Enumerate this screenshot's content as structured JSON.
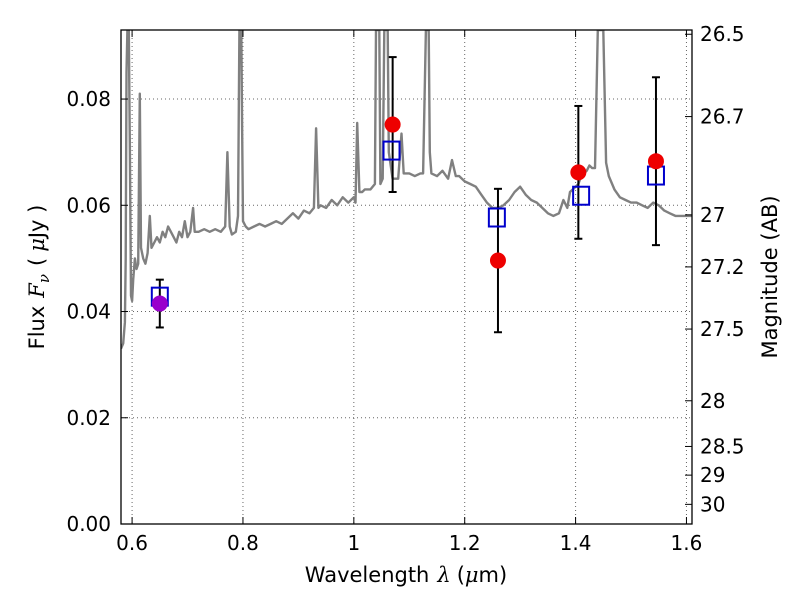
{
  "chart_data": {
    "type": "scatter",
    "xlabel": "Wavelength",
    "xlabel_symbol": "λ",
    "xlabel_unit_open": "(",
    "xlabel_unit_mu": "μ",
    "xlabel_unit_rest": "m)",
    "ylabel_left": "Flux",
    "ylabel_symbol": "F",
    "ylabel_symbol_sub": "ν",
    "ylabel_unit_open": "(",
    "ylabel_unit_mu": "μ",
    "ylabel_unit_rest": "Jy )",
    "ylabel_right": "Magnitude (AB)",
    "xlim": [
      0.58,
      1.61
    ],
    "ylim": [
      0.0,
      0.093
    ],
    "x_ticks": [
      "0.6",
      "0.8",
      "1",
      "1.2",
      "1.4",
      "1.6"
    ],
    "x_tick_values": [
      0.6,
      0.8,
      1.0,
      1.2,
      1.4,
      1.6
    ],
    "y_ticks": [
      "0.00",
      "0.02",
      "0.04",
      "0.06",
      "0.08"
    ],
    "y_tick_values": [
      0.0,
      0.02,
      0.04,
      0.06,
      0.08
    ],
    "right_ticks": [
      {
        "label": "26.5",
        "flux": 0.0922
      },
      {
        "label": "26.7",
        "flux": 0.0767
      },
      {
        "label": "27",
        "flux": 0.0582
      },
      {
        "label": "27.2",
        "flux": 0.0484
      },
      {
        "label": "27.5",
        "flux": 0.0367
      },
      {
        "label": "28",
        "flux": 0.0232
      },
      {
        "label": "28.5",
        "flux": 0.0146
      },
      {
        "label": "29",
        "flux": 0.0092
      },
      {
        "label": "30",
        "flux": 0.0037
      }
    ],
    "observed": [
      {
        "x": 0.65,
        "y": 0.0415,
        "err_low": 0.0045,
        "err_high": 0.0045,
        "color": "#9900cc"
      },
      {
        "x": 1.07,
        "y": 0.0752,
        "err_low": 0.0127,
        "err_high": 0.0127,
        "color": "#ee0000"
      },
      {
        "x": 1.26,
        "y": 0.0496,
        "err_low": 0.0135,
        "err_high": 0.0135,
        "color": "#ee0000"
      },
      {
        "x": 1.405,
        "y": 0.0662,
        "err_low": 0.0125,
        "err_high": 0.0125,
        "color": "#ee0000"
      },
      {
        "x": 1.545,
        "y": 0.0683,
        "err_low": 0.0158,
        "err_high": 0.0158,
        "color": "#ee0000"
      }
    ],
    "model_points": {
      "x": [
        0.65,
        1.068,
        1.258,
        1.41,
        1.545
      ],
      "y": [
        0.0428,
        0.0703,
        0.0577,
        0.0618,
        0.0656
      ],
      "color": "#0000cc"
    },
    "model_spectrum": {
      "color": "#808080",
      "points": [
        [
          0.58,
          0.033
        ],
        [
          0.584,
          0.034
        ],
        [
          0.587,
          0.038
        ],
        [
          0.5885,
          0.05
        ],
        [
          0.59,
          0.085
        ],
        [
          0.5915,
          0.093
        ],
        [
          0.594,
          0.093
        ],
        [
          0.596,
          0.07
        ],
        [
          0.598,
          0.043
        ],
        [
          0.6,
          0.042
        ],
        [
          0.602,
          0.046
        ],
        [
          0.605,
          0.05
        ],
        [
          0.608,
          0.048
        ],
        [
          0.611,
          0.049
        ],
        [
          0.614,
          0.081
        ],
        [
          0.616,
          0.052
        ],
        [
          0.62,
          0.05
        ],
        [
          0.624,
          0.049
        ],
        [
          0.628,
          0.051
        ],
        [
          0.632,
          0.058
        ],
        [
          0.635,
          0.052
        ],
        [
          0.64,
          0.053
        ],
        [
          0.645,
          0.054
        ],
        [
          0.65,
          0.053
        ],
        [
          0.655,
          0.055
        ],
        [
          0.66,
          0.054
        ],
        [
          0.665,
          0.056
        ],
        [
          0.67,
          0.055
        ],
        [
          0.675,
          0.054
        ],
        [
          0.68,
          0.053
        ],
        [
          0.685,
          0.055
        ],
        [
          0.69,
          0.054
        ],
        [
          0.695,
          0.057
        ],
        [
          0.7,
          0.054
        ],
        [
          0.705,
          0.055
        ],
        [
          0.71,
          0.0595
        ],
        [
          0.713,
          0.055
        ],
        [
          0.72,
          0.055
        ],
        [
          0.73,
          0.0555
        ],
        [
          0.74,
          0.055
        ],
        [
          0.75,
          0.0555
        ],
        [
          0.76,
          0.055
        ],
        [
          0.768,
          0.056
        ],
        [
          0.772,
          0.07
        ],
        [
          0.776,
          0.056
        ],
        [
          0.78,
          0.0545
        ],
        [
          0.787,
          0.055
        ],
        [
          0.791,
          0.058
        ],
        [
          0.7935,
          0.093
        ],
        [
          0.797,
          0.093
        ],
        [
          0.7985,
          0.075
        ],
        [
          0.8,
          0.057
        ],
        [
          0.805,
          0.056
        ],
        [
          0.81,
          0.0555
        ],
        [
          0.82,
          0.056
        ],
        [
          0.83,
          0.0565
        ],
        [
          0.84,
          0.056
        ],
        [
          0.85,
          0.0565
        ],
        [
          0.86,
          0.057
        ],
        [
          0.87,
          0.0565
        ],
        [
          0.88,
          0.0575
        ],
        [
          0.89,
          0.0585
        ],
        [
          0.9,
          0.0575
        ],
        [
          0.91,
          0.059
        ],
        [
          0.92,
          0.0585
        ],
        [
          0.928,
          0.0595
        ],
        [
          0.932,
          0.0745
        ],
        [
          0.936,
          0.0595
        ],
        [
          0.94,
          0.06
        ],
        [
          0.95,
          0.0595
        ],
        [
          0.96,
          0.061
        ],
        [
          0.97,
          0.06
        ],
        [
          0.98,
          0.0615
        ],
        [
          0.99,
          0.0605
        ],
        [
          1.0,
          0.0615
        ],
        [
          1.003,
          0.0605
        ],
        [
          1.006,
          0.0755
        ],
        [
          1.01,
          0.0625
        ],
        [
          1.015,
          0.0625
        ],
        [
          1.02,
          0.063
        ],
        [
          1.03,
          0.063
        ],
        [
          1.038,
          0.064
        ],
        [
          1.04,
          0.093
        ],
        [
          1.046,
          0.093
        ],
        [
          1.048,
          0.064
        ],
        [
          1.052,
          0.065
        ],
        [
          1.055,
          0.093
        ],
        [
          1.061,
          0.093
        ],
        [
          1.063,
          0.07
        ],
        [
          1.07,
          0.065
        ],
        [
          1.08,
          0.065
        ],
        [
          1.086,
          0.0735
        ],
        [
          1.09,
          0.066
        ],
        [
          1.1,
          0.066
        ],
        [
          1.11,
          0.0655
        ],
        [
          1.12,
          0.066
        ],
        [
          1.125,
          0.066
        ],
        [
          1.13,
          0.093
        ],
        [
          1.135,
          0.093
        ],
        [
          1.137,
          0.07
        ],
        [
          1.14,
          0.066
        ],
        [
          1.15,
          0.0655
        ],
        [
          1.16,
          0.0665
        ],
        [
          1.17,
          0.065
        ],
        [
          1.177,
          0.0685
        ],
        [
          1.184,
          0.0655
        ],
        [
          1.19,
          0.0655
        ],
        [
          1.2,
          0.0645
        ],
        [
          1.21,
          0.064
        ],
        [
          1.22,
          0.0635
        ],
        [
          1.23,
          0.062
        ],
        [
          1.24,
          0.0605
        ],
        [
          1.25,
          0.0595
        ],
        [
          1.26,
          0.0595
        ],
        [
          1.27,
          0.06
        ],
        [
          1.28,
          0.061
        ],
        [
          1.29,
          0.0625
        ],
        [
          1.3,
          0.0635
        ],
        [
          1.31,
          0.062
        ],
        [
          1.32,
          0.061
        ],
        [
          1.33,
          0.0605
        ],
        [
          1.34,
          0.0595
        ],
        [
          1.35,
          0.0585
        ],
        [
          1.36,
          0.058
        ],
        [
          1.37,
          0.0585
        ],
        [
          1.378,
          0.061
        ],
        [
          1.385,
          0.0595
        ],
        [
          1.39,
          0.0625
        ],
        [
          1.4,
          0.0635
        ],
        [
          1.405,
          0.064
        ],
        [
          1.41,
          0.0655
        ],
        [
          1.415,
          0.066
        ],
        [
          1.42,
          0.0665
        ],
        [
          1.425,
          0.0675
        ],
        [
          1.43,
          0.067
        ],
        [
          1.435,
          0.067
        ],
        [
          1.44,
          0.093
        ],
        [
          1.45,
          0.093
        ],
        [
          1.455,
          0.068
        ],
        [
          1.46,
          0.0655
        ],
        [
          1.47,
          0.063
        ],
        [
          1.48,
          0.0615
        ],
        [
          1.49,
          0.061
        ],
        [
          1.5,
          0.0605
        ],
        [
          1.51,
          0.0605
        ],
        [
          1.52,
          0.06
        ],
        [
          1.53,
          0.0595
        ],
        [
          1.54,
          0.0605
        ],
        [
          1.55,
          0.06
        ],
        [
          1.56,
          0.059
        ],
        [
          1.57,
          0.0585
        ],
        [
          1.58,
          0.058
        ],
        [
          1.59,
          0.058
        ],
        [
          1.6,
          0.058
        ],
        [
          1.61,
          0.058
        ]
      ]
    }
  }
}
